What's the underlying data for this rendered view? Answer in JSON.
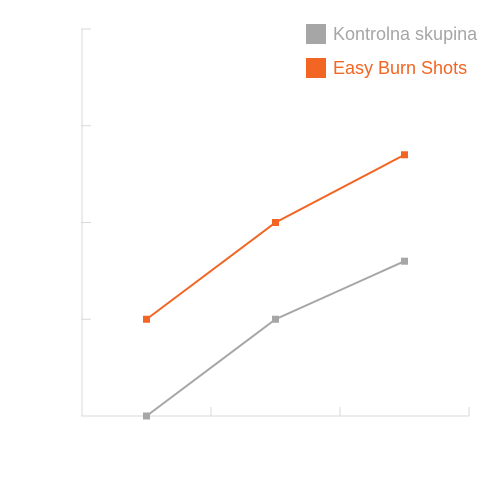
{
  "chart_data": {
    "type": "line",
    "title": "",
    "xlabel": "",
    "ylabel": "",
    "x": [
      1,
      2,
      3
    ],
    "ylim": [
      0,
      4
    ],
    "y_ticks": [
      0,
      1,
      2,
      3,
      4
    ],
    "grid": false,
    "legend_position": "top-right",
    "series": [
      {
        "name": "Kontrolna skupina",
        "color": "#a6a6a6",
        "values": [
          0,
          1,
          1.6
        ]
      },
      {
        "name": "Easy Burn Shots",
        "color": "#f26522",
        "values": [
          1,
          2,
          2.7
        ]
      }
    ]
  }
}
